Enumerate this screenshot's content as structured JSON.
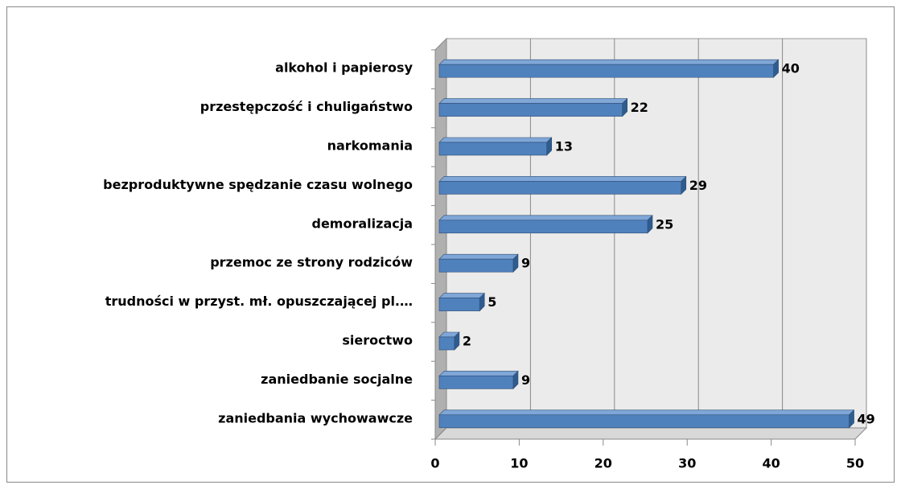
{
  "chart_data": {
    "type": "bar3d_horizontal",
    "categories": [
      "alkohol i papierosy",
      "przestępczość i chuligaństwo",
      "narkomania",
      "bezproduktywne spędzanie czasu wolnego",
      "demoralizacja",
      "przemoc ze strony rodziców",
      "trudności w przyst. mł. opuszczającej pl.…",
      "sieroctwo",
      "zaniedbanie socjalne",
      "zaniedbania wychowawcze"
    ],
    "values": [
      40,
      22,
      13,
      29,
      25,
      9,
      5,
      2,
      9,
      49
    ],
    "color": "#4f81bd",
    "xlim": [
      0,
      50
    ],
    "xticks": [
      0,
      10,
      20,
      30,
      40,
      50
    ],
    "grid": true
  }
}
